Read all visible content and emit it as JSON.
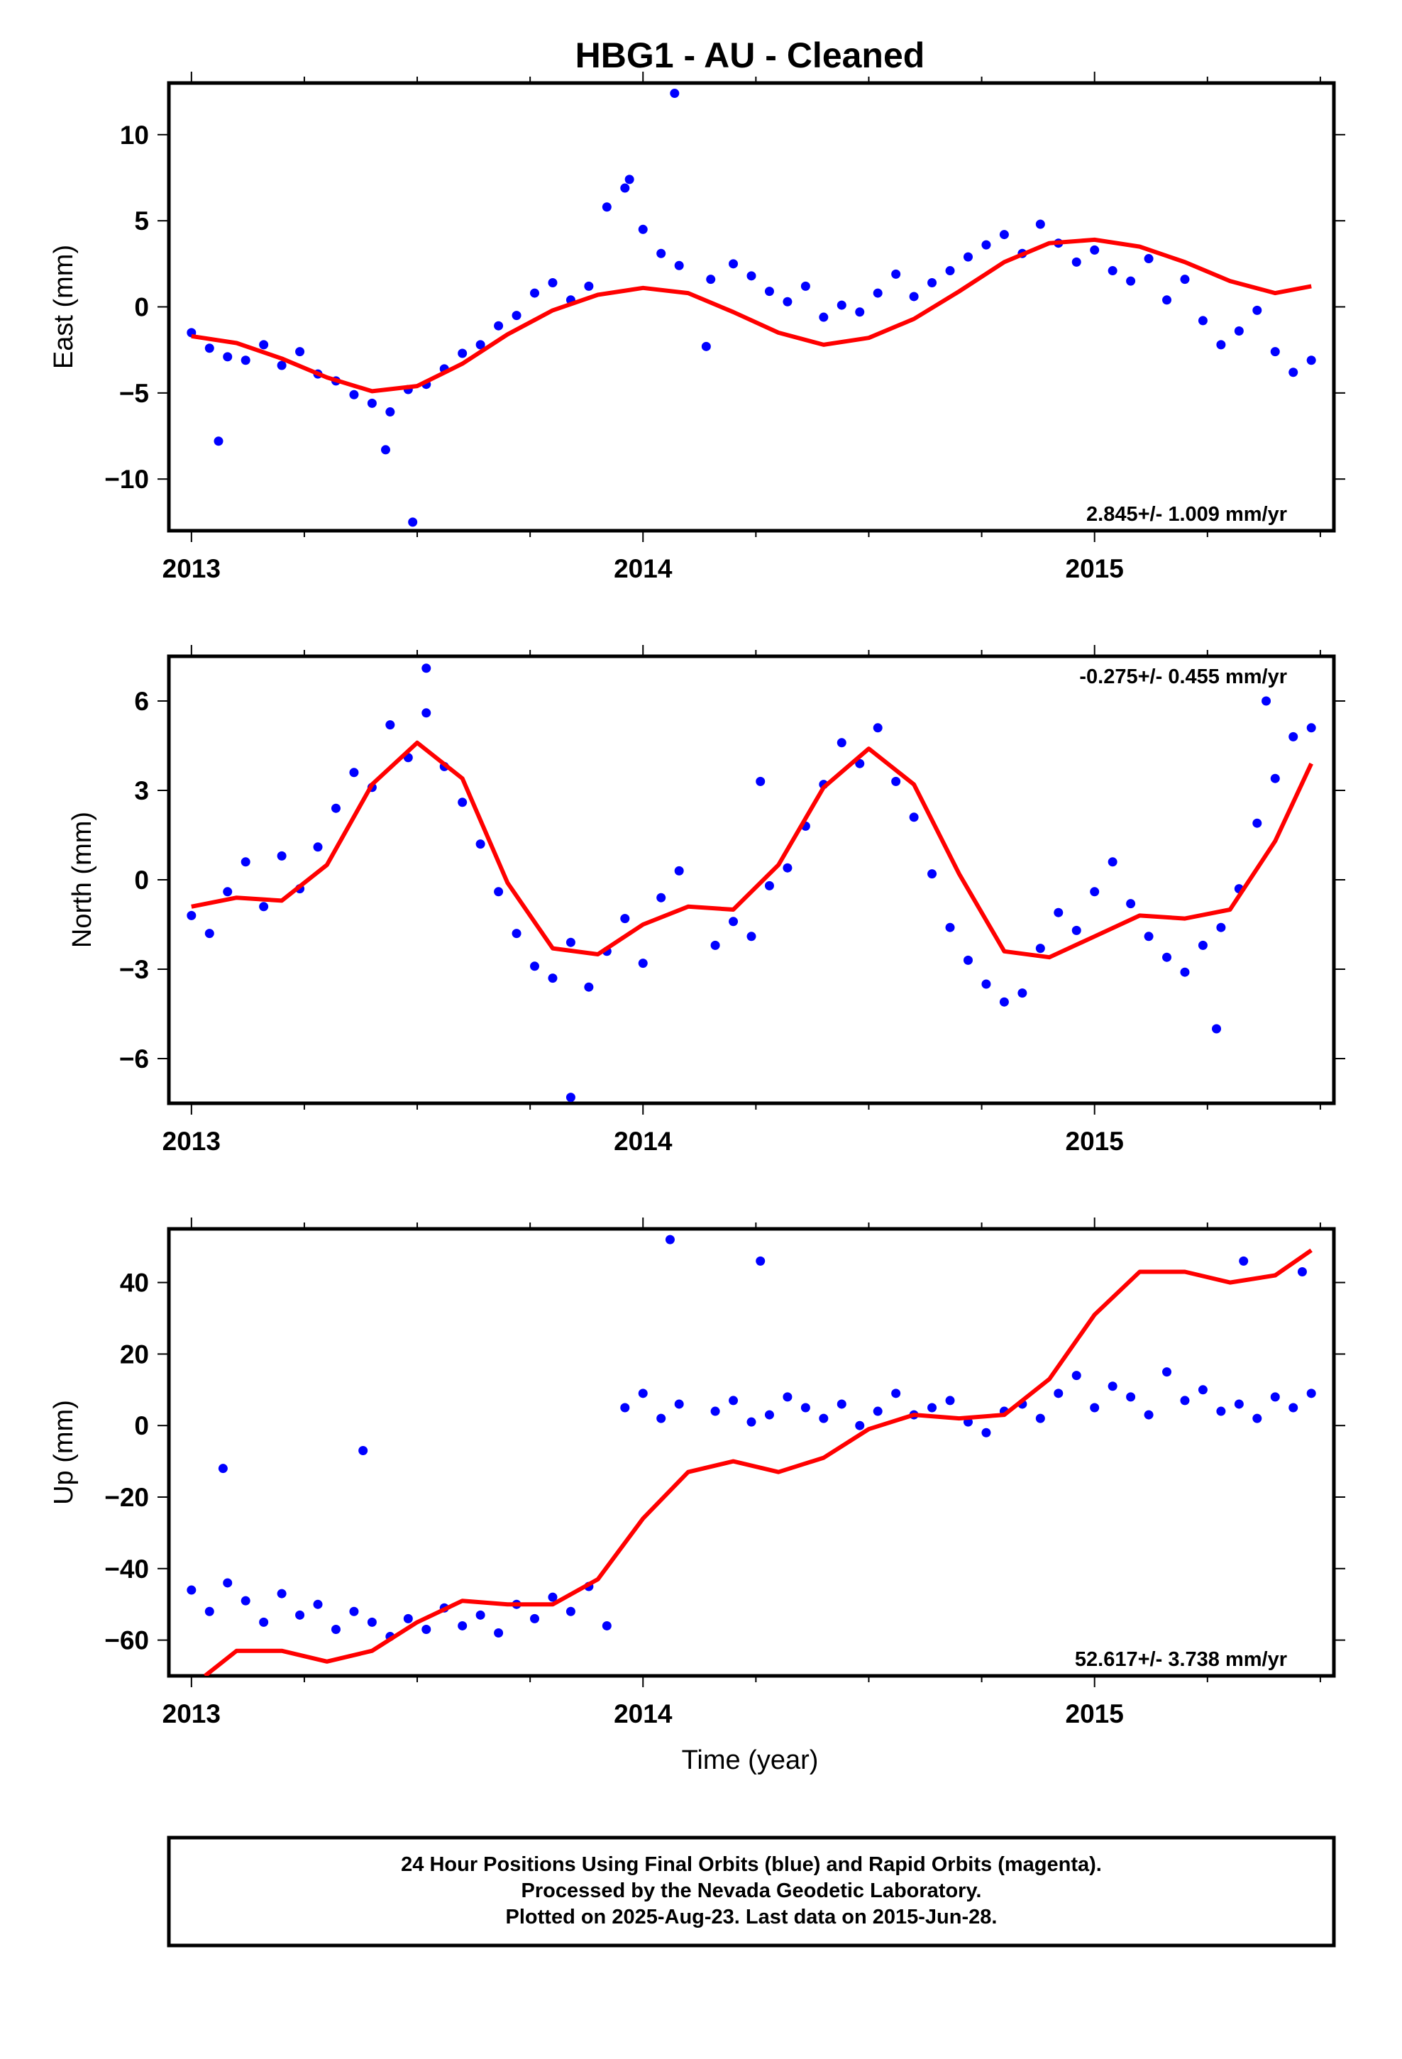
{
  "title": "HBG1  - AU - Cleaned",
  "footer": {
    "lines": [
      "24 Hour Positions Using Final Orbits (blue) and Rapid Orbits (magenta).",
      "Processed by the Nevada Geodetic Laboratory.",
      "Plotted on 2025-Aug-23. Last data on 2015-Jun-28."
    ]
  },
  "colors": {
    "points": "#0000ff",
    "fit": "#ff0000",
    "frame": "#000000"
  },
  "chart_data": [
    {
      "type": "scatter",
      "name": "East",
      "ylabel": "East (mm)",
      "xlim": [
        2012.95,
        2015.53
      ],
      "ylim": [
        -13,
        13
      ],
      "xticks": [
        2013,
        2014,
        2015
      ],
      "xtick_labels": [
        "2013",
        "2014",
        "2015"
      ],
      "yticks": [
        -10,
        -5,
        0,
        5,
        10
      ],
      "ytick_labels": [
        "−10",
        "−5",
        "0",
        "5",
        "10"
      ],
      "rate": "2.845+/- 1.009 mm/yr",
      "rate_position": "bottom-right",
      "fit": {
        "x": [
          2013.0,
          2013.1,
          2013.2,
          2013.3,
          2013.4,
          2013.5,
          2013.6,
          2013.7,
          2013.8,
          2013.9,
          2014.0,
          2014.1,
          2014.2,
          2014.3,
          2014.4,
          2014.5,
          2014.6,
          2014.7,
          2014.8,
          2014.9,
          2015.0,
          2015.1,
          2015.2,
          2015.3,
          2015.4,
          2015.48
        ],
        "y": [
          -1.7,
          -2.1,
          -3.0,
          -4.1,
          -4.9,
          -4.6,
          -3.3,
          -1.6,
          -0.2,
          0.7,
          1.1,
          0.8,
          -0.3,
          -1.5,
          -2.2,
          -1.8,
          -0.7,
          0.9,
          2.6,
          3.7,
          3.9,
          3.5,
          2.6,
          1.5,
          0.8,
          1.2
        ]
      },
      "points": {
        "x": [
          2013.0,
          2013.04,
          2013.08,
          2013.12,
          2013.16,
          2013.2,
          2013.24,
          2013.28,
          2013.32,
          2013.36,
          2013.4,
          2013.44,
          2013.48,
          2013.52,
          2013.56,
          2013.6,
          2013.64,
          2013.68,
          2013.72,
          2013.76,
          2013.8,
          2013.84,
          2013.88,
          2013.92,
          2013.96,
          2014.0,
          2014.04,
          2014.08,
          2014.15,
          2014.2,
          2014.24,
          2014.28,
          2014.32,
          2014.36,
          2014.4,
          2014.44,
          2014.48,
          2014.52,
          2014.56,
          2014.6,
          2014.64,
          2014.68,
          2014.72,
          2014.76,
          2014.8,
          2014.84,
          2014.88,
          2014.92,
          2014.96,
          2015.0,
          2015.04,
          2015.08,
          2015.12,
          2015.16,
          2015.2,
          2015.24,
          2015.28,
          2015.32,
          2015.36,
          2015.4,
          2015.44,
          2015.48,
          2013.43,
          2013.49,
          2013.06,
          2014.07,
          2013.97,
          2014.14
        ],
        "y": [
          -1.5,
          -2.4,
          -2.9,
          -3.1,
          -2.2,
          -3.4,
          -2.6,
          -3.9,
          -4.3,
          -5.1,
          -5.6,
          -6.1,
          -4.8,
          -4.5,
          -3.6,
          -2.7,
          -2.2,
          -1.1,
          -0.5,
          0.8,
          1.4,
          0.4,
          1.2,
          5.8,
          6.9,
          4.5,
          3.1,
          2.4,
          1.6,
          2.5,
          1.8,
          0.9,
          0.3,
          1.2,
          -0.6,
          0.1,
          -0.3,
          0.8,
          1.9,
          0.6,
          1.4,
          2.1,
          2.9,
          3.6,
          4.2,
          3.1,
          4.8,
          3.7,
          2.6,
          3.3,
          2.1,
          1.5,
          2.8,
          0.4,
          1.6,
          -0.8,
          -2.2,
          -1.4,
          -0.2,
          -2.6,
          -3.8,
          -3.1,
          -8.3,
          -12.5,
          -7.8,
          12.4,
          7.4,
          -2.3
        ]
      }
    },
    {
      "type": "scatter",
      "name": "North",
      "ylabel": "North (mm)",
      "xlim": [
        2012.95,
        2015.53
      ],
      "ylim": [
        -7.5,
        7.5
      ],
      "xticks": [
        2013,
        2014,
        2015
      ],
      "xtick_labels": [
        "2013",
        "2014",
        "2015"
      ],
      "yticks": [
        -6,
        -3,
        0,
        3,
        6
      ],
      "ytick_labels": [
        "−6",
        "−3",
        "0",
        "3",
        "6"
      ],
      "rate": "-0.275+/- 0.455 mm/yr",
      "rate_position": "top-right",
      "fit": {
        "x": [
          2013.0,
          2013.1,
          2013.2,
          2013.3,
          2013.4,
          2013.5,
          2013.6,
          2013.7,
          2013.8,
          2013.9,
          2014.0,
          2014.1,
          2014.2,
          2014.3,
          2014.4,
          2014.5,
          2014.6,
          2014.7,
          2014.8,
          2014.9,
          2015.0,
          2015.1,
          2015.2,
          2015.3,
          2015.4,
          2015.48
        ],
        "y": [
          -0.9,
          -0.6,
          -0.7,
          0.5,
          3.2,
          4.6,
          3.4,
          -0.1,
          -2.3,
          -2.5,
          -1.5,
          -0.9,
          -1.0,
          0.5,
          3.1,
          4.4,
          3.2,
          0.2,
          -2.4,
          -2.6,
          -1.9,
          -1.2,
          -1.3,
          -1.0,
          1.3,
          3.9
        ]
      },
      "points": {
        "x": [
          2013.0,
          2013.04,
          2013.08,
          2013.12,
          2013.16,
          2013.2,
          2013.24,
          2013.28,
          2013.32,
          2013.36,
          2013.4,
          2013.44,
          2013.48,
          2013.52,
          2013.56,
          2013.6,
          2013.64,
          2013.68,
          2013.72,
          2013.76,
          2013.8,
          2013.84,
          2013.88,
          2013.92,
          2013.96,
          2014.0,
          2014.04,
          2014.08,
          2014.16,
          2014.2,
          2014.24,
          2014.28,
          2014.32,
          2014.36,
          2014.4,
          2014.44,
          2014.48,
          2014.52,
          2014.56,
          2014.6,
          2014.64,
          2014.68,
          2014.72,
          2014.76,
          2014.8,
          2014.84,
          2014.88,
          2014.92,
          2014.96,
          2015.0,
          2015.04,
          2015.08,
          2015.12,
          2015.16,
          2015.2,
          2015.24,
          2015.28,
          2015.32,
          2015.36,
          2015.4,
          2015.44,
          2015.48,
          2013.84,
          2013.52,
          2014.26,
          2015.27,
          2015.38
        ],
        "y": [
          -1.2,
          -1.8,
          -0.4,
          0.6,
          -0.9,
          0.8,
          -0.3,
          1.1,
          2.4,
          3.6,
          3.1,
          5.2,
          4.1,
          5.6,
          3.8,
          2.6,
          1.2,
          -0.4,
          -1.8,
          -2.9,
          -3.3,
          -2.1,
          -3.6,
          -2.4,
          -1.3,
          -2.8,
          -0.6,
          0.3,
          -2.2,
          -1.4,
          -1.9,
          -0.2,
          0.4,
          1.8,
          3.2,
          4.6,
          3.9,
          5.1,
          3.3,
          2.1,
          0.2,
          -1.6,
          -2.7,
          -3.5,
          -4.1,
          -3.8,
          -2.3,
          -1.1,
          -1.7,
          -0.4,
          0.6,
          -0.8,
          -1.9,
          -2.6,
          -3.1,
          -2.2,
          -1.6,
          -0.3,
          1.9,
          3.4,
          4.8,
          5.1,
          -7.3,
          7.1,
          3.3,
          -5.0,
          6.0
        ]
      }
    },
    {
      "type": "scatter",
      "name": "Up",
      "ylabel": "Up (mm)",
      "xlabel": "Time (year)",
      "xlim": [
        2012.95,
        2015.53
      ],
      "ylim": [
        -70,
        55
      ],
      "xticks": [
        2013,
        2014,
        2015
      ],
      "xtick_labels": [
        "2013",
        "2014",
        "2015"
      ],
      "yticks": [
        -60,
        -40,
        -20,
        0,
        20,
        40
      ],
      "ytick_labels": [
        "−60",
        "−40",
        "−20",
        "0",
        "20",
        "40"
      ],
      "rate": "52.617+/- 3.738 mm/yr",
      "rate_position": "bottom-right",
      "fit": {
        "x": [
          2013.03,
          2013.1,
          2013.2,
          2013.3,
          2013.4,
          2013.5,
          2013.6,
          2013.7,
          2013.8,
          2013.9,
          2014.0,
          2014.1,
          2014.2,
          2014.3,
          2014.4,
          2014.5,
          2014.6,
          2014.7,
          2014.8,
          2014.9,
          2015.0,
          2015.1,
          2015.2,
          2015.3,
          2015.4,
          2015.48
        ],
        "y": [
          -70,
          -63,
          -63,
          -66,
          -63,
          -55,
          -49,
          -50,
          -50,
          -43,
          -26,
          -13,
          -10,
          -13,
          -9,
          -1,
          3,
          2,
          3,
          13,
          31,
          43,
          43,
          40,
          42,
          49
        ]
      },
      "points": {
        "x": [
          2013.0,
          2013.04,
          2013.08,
          2013.12,
          2013.16,
          2013.2,
          2013.24,
          2013.28,
          2013.32,
          2013.36,
          2013.4,
          2013.44,
          2013.48,
          2013.52,
          2013.56,
          2013.6,
          2013.64,
          2013.68,
          2013.72,
          2013.76,
          2013.8,
          2013.84,
          2013.88,
          2013.92,
          2013.96,
          2014.0,
          2014.04,
          2014.08,
          2014.16,
          2014.2,
          2014.24,
          2014.28,
          2014.32,
          2014.36,
          2014.4,
          2014.44,
          2014.48,
          2014.52,
          2014.56,
          2014.6,
          2014.64,
          2014.68,
          2014.72,
          2014.76,
          2014.8,
          2014.84,
          2014.88,
          2014.92,
          2014.96,
          2015.0,
          2015.04,
          2015.08,
          2015.12,
          2015.16,
          2015.2,
          2015.24,
          2015.28,
          2015.32,
          2015.36,
          2015.4,
          2015.44,
          2015.48,
          2013.07,
          2013.38,
          2014.06,
          2014.26,
          2015.33,
          2015.46
        ],
        "y": [
          -46,
          -52,
          -44,
          -49,
          -55,
          -47,
          -53,
          -50,
          -57,
          -52,
          -55,
          -59,
          -54,
          -57,
          -51,
          -56,
          -53,
          -58,
          -50,
          -54,
          -48,
          -52,
          -45,
          -56,
          5,
          9,
          2,
          6,
          4,
          7,
          1,
          3,
          8,
          5,
          2,
          6,
          0,
          4,
          9,
          3,
          5,
          7,
          1,
          -2,
          4,
          6,
          2,
          9,
          14,
          5,
          11,
          8,
          3,
          15,
          7,
          10,
          4,
          6,
          2,
          8,
          5,
          9,
          -12,
          -7,
          52,
          46,
          46,
          43
        ]
      }
    }
  ]
}
